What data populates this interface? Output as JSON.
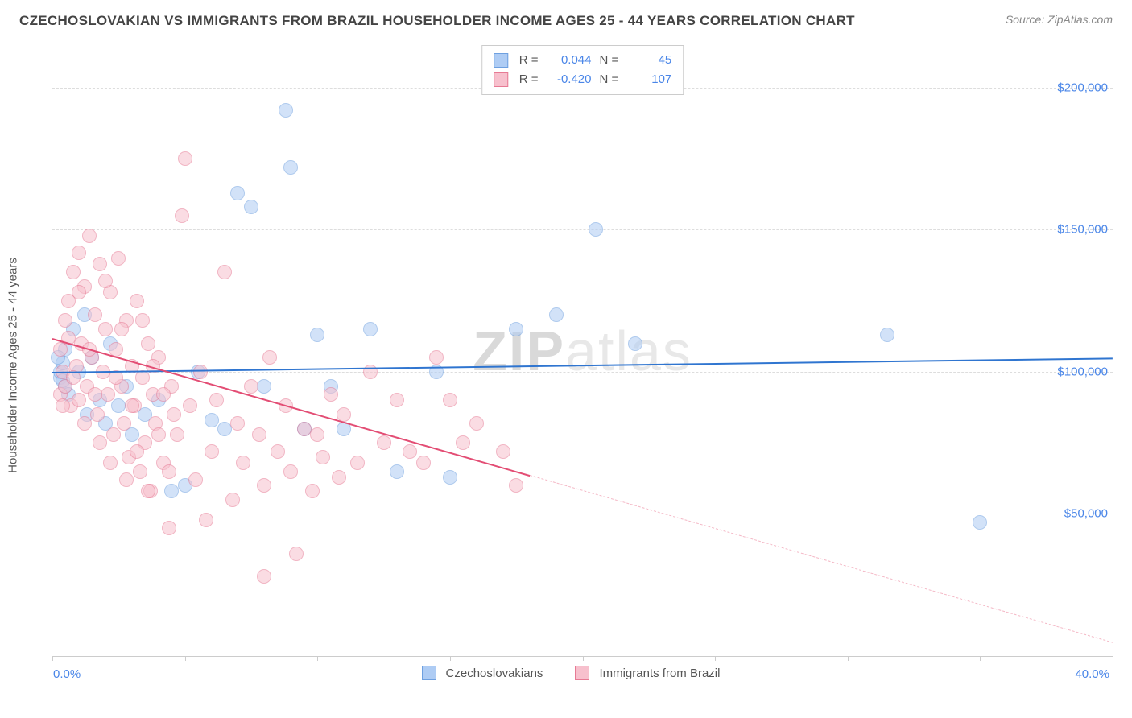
{
  "title": "CZECHOSLOVAKIAN VS IMMIGRANTS FROM BRAZIL HOUSEHOLDER INCOME AGES 25 - 44 YEARS CORRELATION CHART",
  "source_prefix": "Source: ",
  "source_name": "ZipAtlas.com",
  "y_axis_label": "Householder Income Ages 25 - 44 years",
  "watermark": {
    "z": "Z",
    "ip": "IP",
    "rest": "atlas"
  },
  "chart": {
    "type": "scatter",
    "background_color": "#ffffff",
    "grid_color": "#dddddd",
    "axis_color": "#cccccc",
    "label_color": "#555555",
    "value_color": "#4a86e8",
    "xlim": [
      0,
      40
    ],
    "ylim": [
      0,
      215000
    ],
    "x_tick_positions": [
      0,
      5,
      10,
      15,
      20,
      25,
      30,
      35,
      40
    ],
    "x_min_label": "0.0%",
    "x_max_label": "40.0%",
    "y_ticks": [
      {
        "v": 50000,
        "label": "$50,000"
      },
      {
        "v": 100000,
        "label": "$100,000"
      },
      {
        "v": 150000,
        "label": "$150,000"
      },
      {
        "v": 200000,
        "label": "$200,000"
      }
    ],
    "series": [
      {
        "key": "czech",
        "name": "Czechoslovakians",
        "fill": "#aeccf4",
        "stroke": "#6ea0e0",
        "fill_opacity": 0.55,
        "r_stat": "0.044",
        "n_stat": "45",
        "marker_radius": 9,
        "trend": {
          "x1": 0,
          "y1": 100000,
          "x2": 40,
          "y2": 105000,
          "color": "#2f75d0",
          "width": 2.5,
          "dash": "solid"
        },
        "points": [
          [
            0.3,
            98000
          ],
          [
            0.3,
            100000
          ],
          [
            0.4,
            103000
          ],
          [
            0.5,
            95000
          ],
          [
            0.5,
            108000
          ],
          [
            0.6,
            92000
          ],
          [
            0.8,
            115000
          ],
          [
            1.0,
            100000
          ],
          [
            1.2,
            120000
          ],
          [
            1.3,
            85000
          ],
          [
            1.5,
            105000
          ],
          [
            1.8,
            90000
          ],
          [
            2.0,
            82000
          ],
          [
            2.2,
            110000
          ],
          [
            2.5,
            88000
          ],
          [
            2.8,
            95000
          ],
          [
            3.0,
            78000
          ],
          [
            3.5,
            85000
          ],
          [
            4.0,
            90000
          ],
          [
            4.5,
            58000
          ],
          [
            5.0,
            60000
          ],
          [
            5.5,
            100000
          ],
          [
            6.0,
            83000
          ],
          [
            6.5,
            80000
          ],
          [
            7.0,
            163000
          ],
          [
            7.5,
            158000
          ],
          [
            8.0,
            95000
          ],
          [
            8.8,
            192000
          ],
          [
            9.0,
            172000
          ],
          [
            9.5,
            80000
          ],
          [
            10.0,
            113000
          ],
          [
            10.5,
            95000
          ],
          [
            11.0,
            80000
          ],
          [
            12.0,
            115000
          ],
          [
            13.0,
            65000
          ],
          [
            14.5,
            100000
          ],
          [
            15.0,
            63000
          ],
          [
            17.5,
            115000
          ],
          [
            19.0,
            120000
          ],
          [
            20.5,
            150000
          ],
          [
            22.0,
            110000
          ],
          [
            31.5,
            113000
          ],
          [
            35.0,
            47000
          ],
          [
            0.2,
            105000
          ],
          [
            0.4,
            97000
          ]
        ]
      },
      {
        "key": "brazil",
        "name": "Immigrants from Brazil",
        "fill": "#f7c0cd",
        "stroke": "#e77a94",
        "fill_opacity": 0.55,
        "r_stat": "-0.420",
        "n_stat": "107",
        "marker_radius": 9,
        "trend": {
          "x1": 0,
          "y1": 112000,
          "x2": 40,
          "y2": 5000,
          "color": "#e34d74",
          "width": 2.5,
          "dash": "solid",
          "dash_after_x": 18
        },
        "points": [
          [
            0.3,
            92000
          ],
          [
            0.3,
            108000
          ],
          [
            0.4,
            100000
          ],
          [
            0.5,
            118000
          ],
          [
            0.5,
            95000
          ],
          [
            0.6,
            125000
          ],
          [
            0.7,
            88000
          ],
          [
            0.8,
            135000
          ],
          [
            0.9,
            102000
          ],
          [
            1.0,
            142000
          ],
          [
            1.0,
            90000
          ],
          [
            1.1,
            110000
          ],
          [
            1.2,
            130000
          ],
          [
            1.3,
            95000
          ],
          [
            1.4,
            148000
          ],
          [
            1.5,
            105000
          ],
          [
            1.6,
            120000
          ],
          [
            1.7,
            85000
          ],
          [
            1.8,
            138000
          ],
          [
            1.9,
            100000
          ],
          [
            2.0,
            115000
          ],
          [
            2.1,
            92000
          ],
          [
            2.2,
            128000
          ],
          [
            2.3,
            78000
          ],
          [
            2.4,
            108000
          ],
          [
            2.5,
            140000
          ],
          [
            2.6,
            95000
          ],
          [
            2.7,
            82000
          ],
          [
            2.8,
            118000
          ],
          [
            2.9,
            70000
          ],
          [
            3.0,
            102000
          ],
          [
            3.1,
            88000
          ],
          [
            3.2,
            125000
          ],
          [
            3.3,
            65000
          ],
          [
            3.4,
            98000
          ],
          [
            3.5,
            75000
          ],
          [
            3.6,
            110000
          ],
          [
            3.7,
            58000
          ],
          [
            3.8,
            92000
          ],
          [
            3.9,
            82000
          ],
          [
            4.0,
            105000
          ],
          [
            4.2,
            68000
          ],
          [
            4.4,
            45000
          ],
          [
            4.5,
            95000
          ],
          [
            4.7,
            78000
          ],
          [
            4.9,
            155000
          ],
          [
            5.0,
            175000
          ],
          [
            5.2,
            88000
          ],
          [
            5.4,
            62000
          ],
          [
            5.6,
            100000
          ],
          [
            5.8,
            48000
          ],
          [
            6.0,
            72000
          ],
          [
            6.2,
            90000
          ],
          [
            6.5,
            135000
          ],
          [
            6.8,
            55000
          ],
          [
            7.0,
            82000
          ],
          [
            7.2,
            68000
          ],
          [
            7.5,
            95000
          ],
          [
            7.8,
            78000
          ],
          [
            8.0,
            60000
          ],
          [
            8.2,
            105000
          ],
          [
            8.5,
            72000
          ],
          [
            8.8,
            88000
          ],
          [
            8.0,
            28000
          ],
          [
            9.0,
            65000
          ],
          [
            9.2,
            36000
          ],
          [
            9.5,
            80000
          ],
          [
            9.8,
            58000
          ],
          [
            10.0,
            78000
          ],
          [
            10.2,
            70000
          ],
          [
            10.5,
            92000
          ],
          [
            10.8,
            63000
          ],
          [
            11.0,
            85000
          ],
          [
            11.5,
            68000
          ],
          [
            12.0,
            100000
          ],
          [
            12.5,
            75000
          ],
          [
            13.0,
            90000
          ],
          [
            13.5,
            72000
          ],
          [
            14.0,
            68000
          ],
          [
            14.5,
            105000
          ],
          [
            15.0,
            90000
          ],
          [
            15.5,
            75000
          ],
          [
            16.0,
            82000
          ],
          [
            17.0,
            72000
          ],
          [
            17.5,
            60000
          ],
          [
            0.4,
            88000
          ],
          [
            0.6,
            112000
          ],
          [
            0.8,
            98000
          ],
          [
            1.0,
            128000
          ],
          [
            1.2,
            82000
          ],
          [
            1.4,
            108000
          ],
          [
            1.6,
            92000
          ],
          [
            1.8,
            75000
          ],
          [
            2.0,
            132000
          ],
          [
            2.2,
            68000
          ],
          [
            2.4,
            98000
          ],
          [
            2.6,
            115000
          ],
          [
            2.8,
            62000
          ],
          [
            3.0,
            88000
          ],
          [
            3.2,
            72000
          ],
          [
            3.4,
            118000
          ],
          [
            3.6,
            58000
          ],
          [
            3.8,
            102000
          ],
          [
            4.0,
            78000
          ],
          [
            4.2,
            92000
          ],
          [
            4.4,
            65000
          ],
          [
            4.6,
            85000
          ]
        ]
      }
    ],
    "stats_box": {
      "r_label": "R  =",
      "n_label": "N  ="
    },
    "legend_bottom": true
  }
}
